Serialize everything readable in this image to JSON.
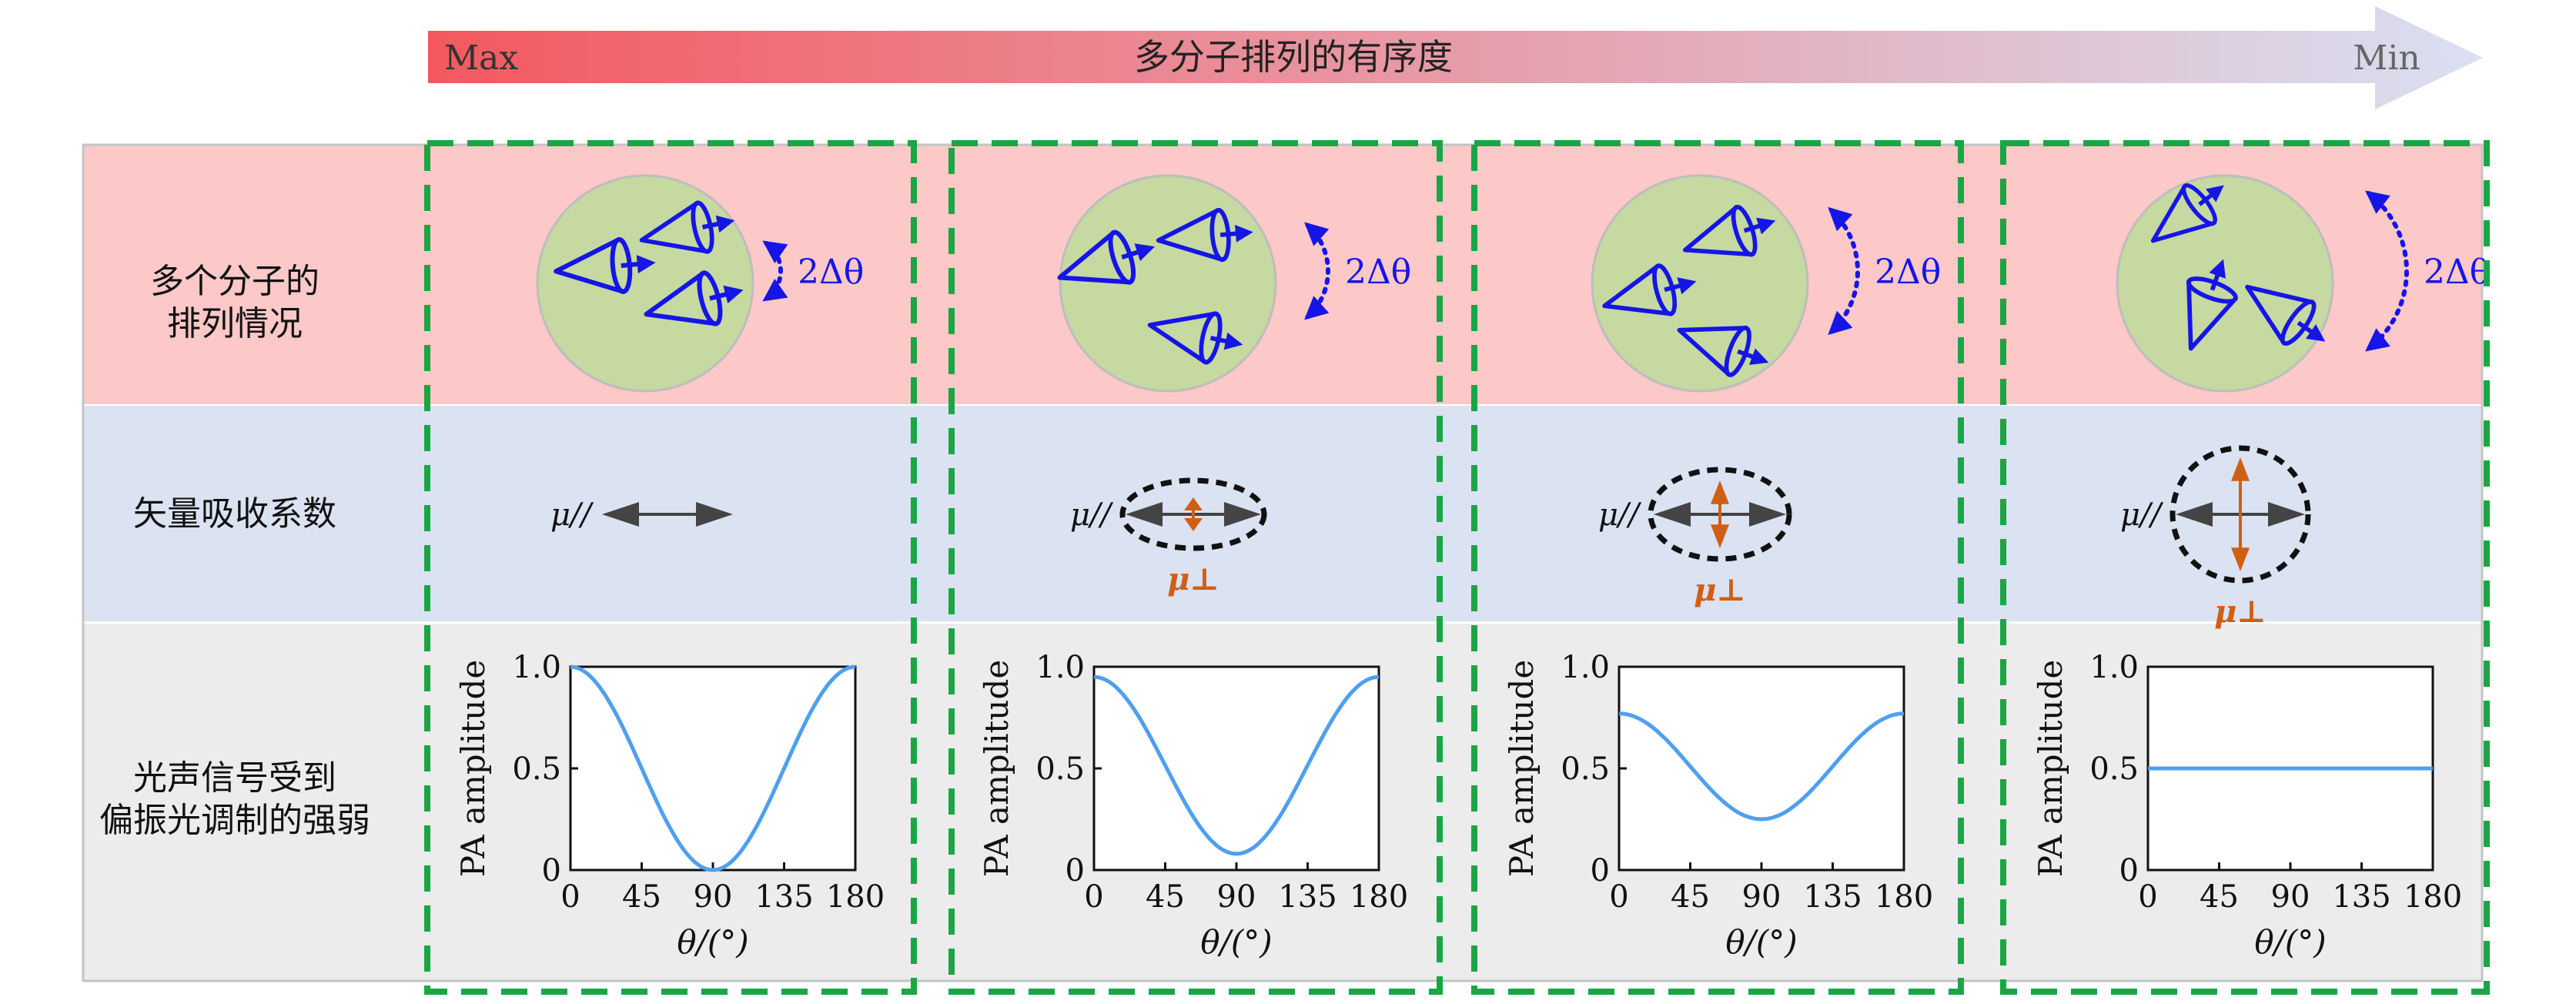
{
  "header": {
    "title": "多分子排列的有序度",
    "max_label": "Max",
    "min_label": "Min",
    "gradient_start": "#f4585f",
    "gradient_end": "#d9e0f2"
  },
  "rows": {
    "alignment": {
      "lines": [
        "多个分子的",
        "排列情况"
      ],
      "bg": "#fdc8c8"
    },
    "absorption": {
      "label": "矢量吸收系数",
      "bg": "#dbe2f2"
    },
    "signal": {
      "lines": [
        "光声信号受到",
        "偏振光调制的强弱"
      ],
      "bg": "#ececec"
    }
  },
  "annotations": {
    "angle_label": "2Δθ",
    "mu_parallel": "μ//",
    "mu_perp": "μ⊥"
  },
  "colors": {
    "circle_fill": "#c5d9a1",
    "molecule": "#1515e6",
    "perp_arrow": "#cf5f14",
    "parallel_arrow": "#444444",
    "curve": "#4f9ff0",
    "dashed_box": "#1aa645"
  },
  "chart_data": [
    {
      "type": "line",
      "xlabel": "θ/(°)",
      "ylabel": "PA amplitude",
      "xlim": [
        0,
        180
      ],
      "ylim": [
        0,
        1.0
      ],
      "xticks": [
        "0",
        "45",
        "90",
        "135",
        "180"
      ],
      "yticks": [
        "0",
        "0.5",
        "1.0"
      ],
      "x": [
        0,
        45,
        90,
        135,
        180
      ],
      "y": [
        1.0,
        0.5,
        0.0,
        0.5,
        1.0
      ]
    },
    {
      "type": "line",
      "xlabel": "θ/(°)",
      "ylabel": "PA amplitude",
      "xlim": [
        0,
        180
      ],
      "ylim": [
        0,
        1.0
      ],
      "xticks": [
        "0",
        "45",
        "90",
        "135",
        "180"
      ],
      "yticks": [
        "0",
        "0.5",
        "1.0"
      ],
      "x": [
        0,
        45,
        90,
        135,
        180
      ],
      "y": [
        0.95,
        0.515,
        0.08,
        0.515,
        0.95
      ]
    },
    {
      "type": "line",
      "xlabel": "θ/(°)",
      "ylabel": "PA amplitude",
      "xlim": [
        0,
        180
      ],
      "ylim": [
        0,
        1.0
      ],
      "xticks": [
        "0",
        "45",
        "90",
        "135",
        "180"
      ],
      "yticks": [
        "0",
        "0.5",
        "1.0"
      ],
      "x": [
        0,
        45,
        90,
        135,
        180
      ],
      "y": [
        0.77,
        0.51,
        0.25,
        0.51,
        0.77
      ]
    },
    {
      "type": "line",
      "xlabel": "θ/(°)",
      "ylabel": "PA amplitude",
      "xlim": [
        0,
        180
      ],
      "ylim": [
        0,
        1.0
      ],
      "xticks": [
        "0",
        "45",
        "90",
        "135",
        "180"
      ],
      "yticks": [
        "0",
        "0.5",
        "1.0"
      ],
      "x": [
        0,
        45,
        90,
        135,
        180
      ],
      "y": [
        0.5,
        0.5,
        0.5,
        0.5,
        0.5
      ]
    }
  ]
}
